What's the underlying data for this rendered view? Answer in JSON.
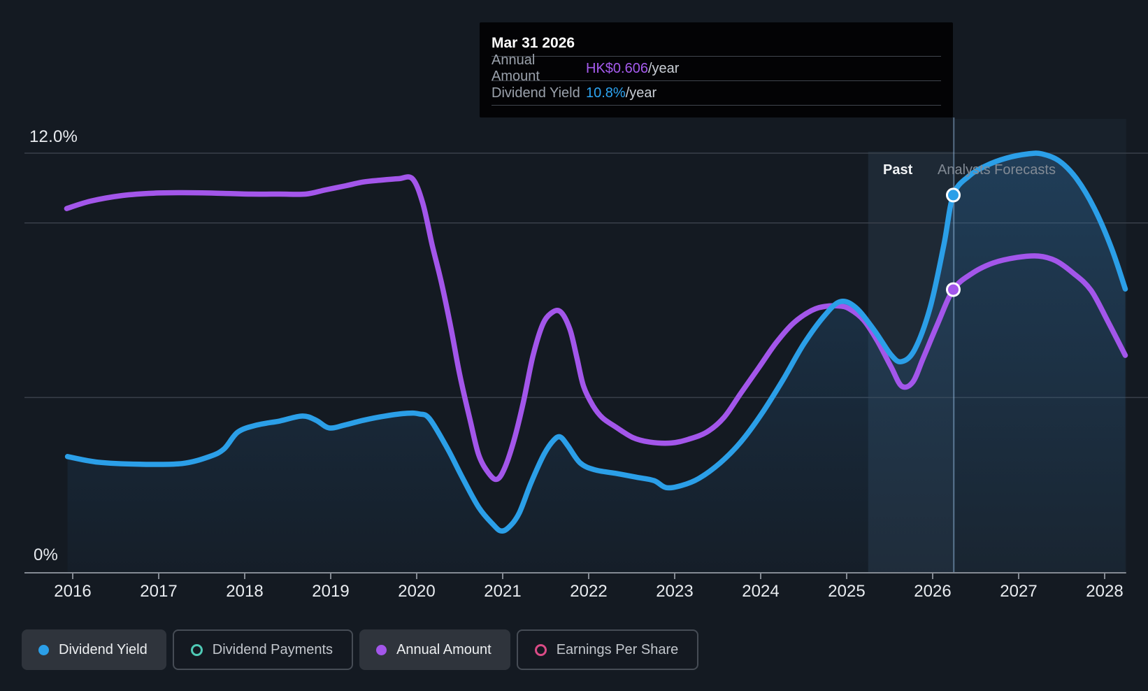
{
  "page": {
    "background": "#141a22"
  },
  "tooltip": {
    "date": "Mar 31 2026",
    "rows": [
      {
        "label": "Annual Amount",
        "value": "HK$0.606",
        "suffix": "/year",
        "color": "#a55bee"
      },
      {
        "label": "Dividend Yield",
        "value": "10.8%",
        "suffix": "/year",
        "color": "#2da4f2"
      }
    ]
  },
  "labels": {
    "past": "Past",
    "forecast": "Analysts Forecasts",
    "y_top": "12.0%",
    "y_bottom": "0%"
  },
  "legend": {
    "items": [
      {
        "label": "Dividend Yield",
        "color": "#2b9fe8",
        "marker": "filled",
        "state": "active"
      },
      {
        "label": "Dividend Payments",
        "color": "#4fc9b5",
        "marker": "ring",
        "state": "inactive"
      },
      {
        "label": "Annual Amount",
        "color": "#a356ea",
        "marker": "filled",
        "state": "active"
      },
      {
        "label": "Earnings Per Share",
        "color": "#da4b86",
        "marker": "ring",
        "state": "inactive"
      }
    ]
  },
  "chart_data": {
    "type": "line",
    "x_ticks": [
      2016,
      2017,
      2018,
      2019,
      2020,
      2021,
      2022,
      2023,
      2024,
      2025,
      2026,
      2027,
      2028
    ],
    "x_range": [
      2015.93,
      2028.25
    ],
    "y_axis": {
      "min": 0,
      "max": 12,
      "unit": "%",
      "top_label": "12.0%",
      "bottom_label": "0%"
    },
    "gridlines_pct": [
      12,
      10,
      5,
      0
    ],
    "past_band": {
      "from": 2025.25,
      "to": 2026.25
    },
    "divider_year": 2026.25,
    "legend_position": "bottom",
    "colors": {
      "dividend_yield": "#2b9fe8",
      "annual_amount": "#a356ea",
      "area_fill": "#3280c2",
      "band": "#7dafe1",
      "crosshair": "#96bee4"
    },
    "series": [
      {
        "name": "Dividend Yield",
        "unit": "%",
        "color": "#2b9fe8",
        "points": [
          [
            2015.94,
            3.31
          ],
          [
            2016.29,
            3.15
          ],
          [
            2016.78,
            3.09
          ],
          [
            2017.27,
            3.11
          ],
          [
            2017.59,
            3.31
          ],
          [
            2017.76,
            3.53
          ],
          [
            2017.92,
            4.01
          ],
          [
            2018.14,
            4.21
          ],
          [
            2018.41,
            4.33
          ],
          [
            2018.67,
            4.47
          ],
          [
            2018.83,
            4.35
          ],
          [
            2018.98,
            4.13
          ],
          [
            2019.16,
            4.21
          ],
          [
            2019.38,
            4.35
          ],
          [
            2019.63,
            4.47
          ],
          [
            2019.89,
            4.55
          ],
          [
            2020.03,
            4.53
          ],
          [
            2020.15,
            4.39
          ],
          [
            2020.36,
            3.53
          ],
          [
            2020.52,
            2.76
          ],
          [
            2020.72,
            1.86
          ],
          [
            2020.89,
            1.36
          ],
          [
            2020.98,
            1.18
          ],
          [
            2021.07,
            1.28
          ],
          [
            2021.19,
            1.68
          ],
          [
            2021.33,
            2.56
          ],
          [
            2021.48,
            3.37
          ],
          [
            2021.59,
            3.77
          ],
          [
            2021.67,
            3.87
          ],
          [
            2021.76,
            3.61
          ],
          [
            2021.9,
            3.13
          ],
          [
            2022.07,
            2.93
          ],
          [
            2022.31,
            2.83
          ],
          [
            2022.55,
            2.72
          ],
          [
            2022.76,
            2.62
          ],
          [
            2022.9,
            2.42
          ],
          [
            2023.08,
            2.48
          ],
          [
            2023.28,
            2.68
          ],
          [
            2023.53,
            3.13
          ],
          [
            2023.77,
            3.73
          ],
          [
            2024.01,
            4.53
          ],
          [
            2024.26,
            5.51
          ],
          [
            2024.5,
            6.53
          ],
          [
            2024.75,
            7.37
          ],
          [
            2024.93,
            7.75
          ],
          [
            2025.11,
            7.57
          ],
          [
            2025.32,
            6.93
          ],
          [
            2025.52,
            6.21
          ],
          [
            2025.64,
            6.03
          ],
          [
            2025.79,
            6.37
          ],
          [
            2025.97,
            7.57
          ],
          [
            2026.13,
            9.37
          ],
          [
            2026.24,
            10.8
          ],
          [
            2026.42,
            11.34
          ],
          [
            2026.62,
            11.64
          ],
          [
            2026.86,
            11.86
          ],
          [
            2027.11,
            11.98
          ],
          [
            2027.27,
            11.98
          ],
          [
            2027.47,
            11.78
          ],
          [
            2027.67,
            11.28
          ],
          [
            2027.88,
            10.42
          ],
          [
            2028.08,
            9.28
          ],
          [
            2028.24,
            8.11
          ]
        ]
      },
      {
        "name": "Annual Amount",
        "unit": "HK$/year",
        "color": "#a356ea",
        "points": [
          [
            2015.93,
            0.78
          ],
          [
            2016.21,
            0.796
          ],
          [
            2016.58,
            0.808
          ],
          [
            2016.94,
            0.813
          ],
          [
            2017.27,
            0.814
          ],
          [
            2017.67,
            0.813
          ],
          [
            2018.08,
            0.811
          ],
          [
            2018.41,
            0.811
          ],
          [
            2018.71,
            0.811
          ],
          [
            2018.94,
            0.82
          ],
          [
            2019.18,
            0.829
          ],
          [
            2019.38,
            0.837
          ],
          [
            2019.59,
            0.841
          ],
          [
            2019.79,
            0.844
          ],
          [
            2019.95,
            0.844
          ],
          [
            2020.07,
            0.792
          ],
          [
            2020.18,
            0.702
          ],
          [
            2020.29,
            0.619
          ],
          [
            2020.4,
            0.522
          ],
          [
            2020.5,
            0.424
          ],
          [
            2020.62,
            0.327
          ],
          [
            2020.72,
            0.252
          ],
          [
            2020.83,
            0.214
          ],
          [
            2020.93,
            0.199
          ],
          [
            2021.02,
            0.222
          ],
          [
            2021.13,
            0.282
          ],
          [
            2021.24,
            0.364
          ],
          [
            2021.35,
            0.462
          ],
          [
            2021.46,
            0.529
          ],
          [
            2021.56,
            0.555
          ],
          [
            2021.67,
            0.559
          ],
          [
            2021.78,
            0.522
          ],
          [
            2021.86,
            0.462
          ],
          [
            2021.94,
            0.399
          ],
          [
            2022.05,
            0.357
          ],
          [
            2022.16,
            0.331
          ],
          [
            2022.31,
            0.312
          ],
          [
            2022.51,
            0.289
          ],
          [
            2022.71,
            0.279
          ],
          [
            2022.96,
            0.277
          ],
          [
            2023.16,
            0.285
          ],
          [
            2023.37,
            0.3
          ],
          [
            2023.57,
            0.331
          ],
          [
            2023.77,
            0.384
          ],
          [
            2023.98,
            0.439
          ],
          [
            2024.18,
            0.492
          ],
          [
            2024.38,
            0.534
          ],
          [
            2024.59,
            0.561
          ],
          [
            2024.75,
            0.57
          ],
          [
            2024.91,
            0.571
          ],
          [
            2025.03,
            0.565
          ],
          [
            2025.2,
            0.54
          ],
          [
            2025.36,
            0.495
          ],
          [
            2025.52,
            0.439
          ],
          [
            2025.64,
            0.399
          ],
          [
            2025.77,
            0.408
          ],
          [
            2025.89,
            0.459
          ],
          [
            2026.05,
            0.529
          ],
          [
            2026.24,
            0.606
          ],
          [
            2026.46,
            0.641
          ],
          [
            2026.7,
            0.663
          ],
          [
            2026.98,
            0.675
          ],
          [
            2027.23,
            0.678
          ],
          [
            2027.43,
            0.668
          ],
          [
            2027.63,
            0.642
          ],
          [
            2027.84,
            0.605
          ],
          [
            2028.04,
            0.537
          ],
          [
            2028.24,
            0.465
          ]
        ]
      }
    ],
    "markers": [
      {
        "series": "Dividend Yield",
        "x": 2026.24,
        "value": 10.8
      },
      {
        "series": "Annual Amount",
        "x": 2026.24,
        "value": 0.606
      }
    ]
  }
}
